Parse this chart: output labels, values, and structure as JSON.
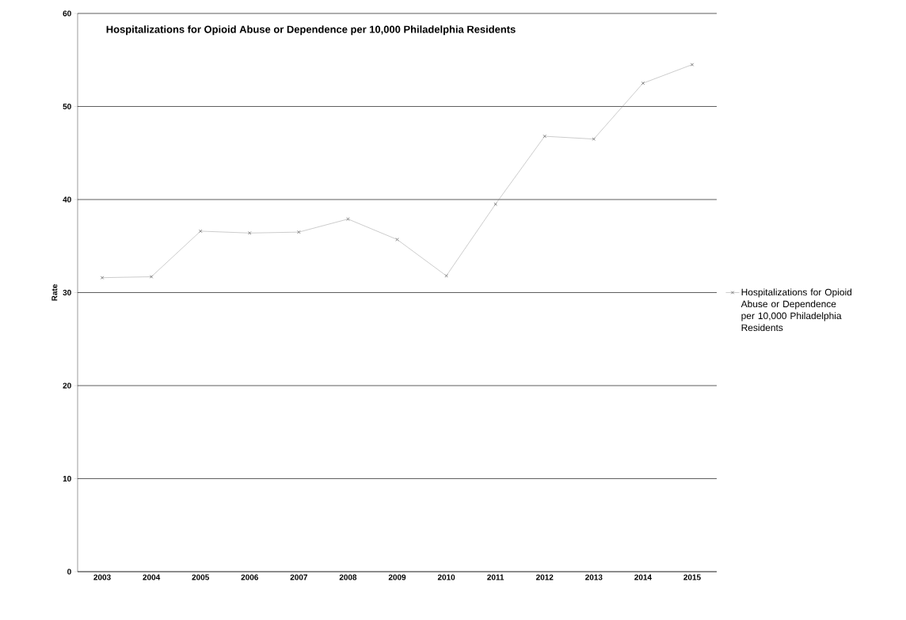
{
  "chart_data": {
    "type": "line",
    "title": "**Hospitalizations for Opioid Abuse or Dependence per 10,000 Philadelphia Residents**",
    "ylabel": "Rate",
    "categories": [
      "2003",
      "2004",
      "2005",
      "2006",
      "2007",
      "2008",
      "2009",
      "2010",
      "2011",
      "2012",
      "2013",
      "2014",
      "2015"
    ],
    "series": [
      {
        "name": "Hospitalizations for Opioid Abuse or Dependence per 10,000 Philadelphia Residents",
        "color": "#7f7f7f",
        "values": [
          31.6,
          31.7,
          36.6,
          36.4,
          36.5,
          37.9,
          35.7,
          31.8,
          39.5,
          46.8,
          46.5,
          52.5,
          54.5
        ]
      }
    ],
    "ylim": [
      0,
      60
    ],
    "yticks": [
      0,
      10,
      20,
      30,
      40,
      50,
      60
    ],
    "grid": "y",
    "legend": "right",
    "marker": "cross",
    "line_style": "solid"
  }
}
